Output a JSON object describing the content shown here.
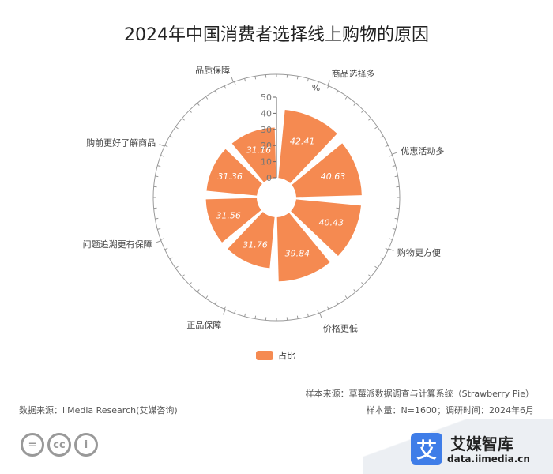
{
  "chart_data": {
    "type": "bar",
    "subtype": "polar-bar",
    "title": "2024年中国消费者选择线上购物的原因",
    "unit_label": "%",
    "radial_range": [
      0,
      50
    ],
    "radial_ticks": [
      "0",
      "10",
      "20",
      "30",
      "40",
      "50"
    ],
    "categories": [
      "商品选择多",
      "优惠活动多",
      "购物更方便",
      "价格更低",
      "正品保障",
      "问题追溯更有保障",
      "购前更好了解商品",
      "品质保障"
    ],
    "series": [
      {
        "name": "占比",
        "values": [
          42.41,
          40.63,
          40.43,
          39.84,
          31.76,
          31.56,
          31.36,
          31.16
        ],
        "labels": [
          "42.41",
          "40.63",
          "40.43",
          "39.84",
          "31.76",
          "31.56",
          "31.36",
          "31.16"
        ]
      }
    ],
    "legend_position": "bottom",
    "colors": {
      "bar": "#F58A51",
      "grid": "#9a9a9a",
      "label": "#ffffff"
    }
  },
  "footer": {
    "sample_source": "样本来源：草莓派数据调查与计算系统（Strawberry Pie）",
    "sample_size": "样本量：N=1600；调研时间：2024年6月",
    "data_source": "数据来源：iiMedia Research(艾媒咨询)"
  },
  "cc_badges": [
    "=",
    "cc",
    "i"
  ],
  "brand": {
    "logo_char": "艾",
    "name": "艾媒智库",
    "url": "data.iimedia.cn"
  }
}
